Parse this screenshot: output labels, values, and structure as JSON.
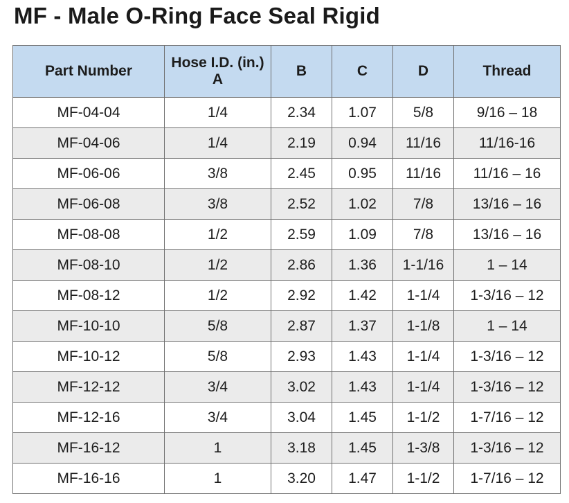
{
  "title": "MF - Male O-Ring Face Seal Rigid",
  "table": {
    "headers": {
      "part_number": "Part Number",
      "hose_id_line1": "Hose I.D. (in.)",
      "hose_id_line2": "A",
      "b": "B",
      "c": "C",
      "d": "D",
      "thread": "Thread"
    },
    "rows": [
      [
        "MF-04-04",
        "1/4",
        "2.34",
        "1.07",
        "5/8",
        "9/16 – 18"
      ],
      [
        "MF-04-06",
        "1/4",
        "2.19",
        "0.94",
        "11/16",
        "11/16-16"
      ],
      [
        "MF-06-06",
        "3/8",
        "2.45",
        "0.95",
        "11/16",
        "11/16 – 16"
      ],
      [
        "MF-06-08",
        "3/8",
        "2.52",
        "1.02",
        "7/8",
        "13/16 – 16"
      ],
      [
        "MF-08-08",
        "1/2",
        "2.59",
        "1.09",
        "7/8",
        "13/16 – 16"
      ],
      [
        "MF-08-10",
        "1/2",
        "2.86",
        "1.36",
        "1-1/16",
        "1 – 14"
      ],
      [
        "MF-08-12",
        "1/2",
        "2.92",
        "1.42",
        "1-1/4",
        "1-3/16 – 12"
      ],
      [
        "MF-10-10",
        "5/8",
        "2.87",
        "1.37",
        "1-1/8",
        "1 – 14"
      ],
      [
        "MF-10-12",
        "5/8",
        "2.93",
        "1.43",
        "1-1/4",
        "1-3/16 – 12"
      ],
      [
        "MF-12-12",
        "3/4",
        "3.02",
        "1.43",
        "1-1/4",
        "1-3/16 – 12"
      ],
      [
        "MF-12-16",
        "3/4",
        "3.04",
        "1.45",
        "1-1/2",
        "1-7/16 – 12"
      ],
      [
        "MF-16-12",
        "1",
        "3.18",
        "1.45",
        "1-3/8",
        "1-3/16 – 12"
      ],
      [
        "MF-16-16",
        "1",
        "3.20",
        "1.47",
        "1-1/2",
        "1-7/16 – 12"
      ]
    ]
  },
  "colors": {
    "header_bg": "#c4daf0",
    "alt_row_bg": "#ebebeb",
    "border": "#6f6f6f",
    "text": "#1c1c1c"
  }
}
